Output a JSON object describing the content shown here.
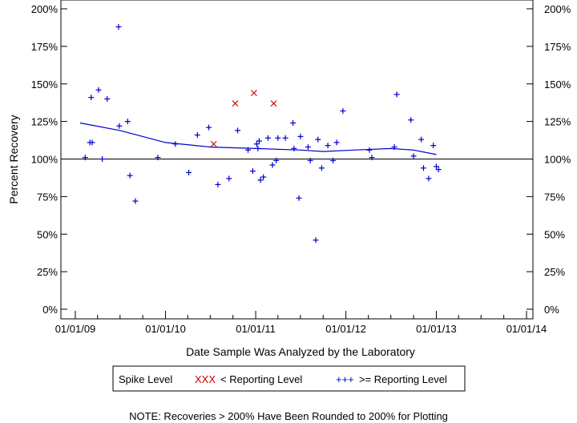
{
  "chart_data": {
    "type": "scatter",
    "title": "",
    "xlabel": "Date Sample Was Analyzed by the Laboratory",
    "ylabel": "Percent Recovery",
    "x_ticks": [
      "01/01/09",
      "01/01/10",
      "01/01/11",
      "01/01/12",
      "01/01/13",
      "01/01/14"
    ],
    "x_range": [
      "2009-01-01",
      "2014-01-01"
    ],
    "y_ticks": [
      "0%",
      "25%",
      "50%",
      "75%",
      "100%",
      "125%",
      "150%",
      "175%",
      "200%"
    ],
    "ylim": [
      0,
      200
    ],
    "reference_line": 100,
    "grid": false,
    "legend_placement": "bottom",
    "note": "NOTE: Recoveries > 200% Have Been Rounded to 200% for Plotting",
    "series": [
      {
        "name": ">= Reporting Level",
        "marker": "+++",
        "color": "#0000cc",
        "points": [
          [
            "2009-02-10",
            101
          ],
          [
            "2009-03-01",
            111
          ],
          [
            "2009-03-06",
            141
          ],
          [
            "2009-03-10",
            111
          ],
          [
            "2009-04-05",
            146
          ],
          [
            "2009-04-20",
            100
          ],
          [
            "2009-05-10",
            140
          ],
          [
            "2009-06-25",
            188
          ],
          [
            "2009-06-28",
            122
          ],
          [
            "2009-08-01",
            125
          ],
          [
            "2009-08-10",
            89
          ],
          [
            "2009-09-01",
            72
          ],
          [
            "2009-12-01",
            101
          ],
          [
            "2010-02-10",
            110
          ],
          [
            "2010-04-05",
            91
          ],
          [
            "2010-05-10",
            116
          ],
          [
            "2010-06-25",
            121
          ],
          [
            "2010-08-01",
            83
          ],
          [
            "2010-09-15",
            87
          ],
          [
            "2010-10-20",
            119
          ],
          [
            "2010-12-01",
            106
          ],
          [
            "2010-12-20",
            92
          ],
          [
            "2011-01-05",
            110
          ],
          [
            "2011-01-10",
            107
          ],
          [
            "2011-01-15",
            112
          ],
          [
            "2011-01-20",
            86
          ],
          [
            "2011-02-01",
            88
          ],
          [
            "2011-02-20",
            114
          ],
          [
            "2011-03-10",
            96
          ],
          [
            "2011-03-25",
            99
          ],
          [
            "2011-04-01",
            114
          ],
          [
            "2011-05-01",
            114
          ],
          [
            "2011-06-01",
            124
          ],
          [
            "2011-06-05",
            107
          ],
          [
            "2011-06-25",
            74
          ],
          [
            "2011-07-01",
            115
          ],
          [
            "2011-08-01",
            108
          ],
          [
            "2011-08-10",
            99
          ],
          [
            "2011-09-01",
            46
          ],
          [
            "2011-09-10",
            113
          ],
          [
            "2011-09-25",
            94
          ],
          [
            "2011-10-20",
            109
          ],
          [
            "2011-11-10",
            99
          ],
          [
            "2011-11-25",
            111
          ],
          [
            "2011-12-20",
            132
          ],
          [
            "2012-04-05",
            106
          ],
          [
            "2012-04-15",
            101
          ],
          [
            "2012-07-15",
            108
          ],
          [
            "2012-07-25",
            143
          ],
          [
            "2012-09-20",
            126
          ],
          [
            "2012-10-01",
            102
          ],
          [
            "2012-11-01",
            113
          ],
          [
            "2012-11-10",
            94
          ],
          [
            "2012-12-01",
            87
          ],
          [
            "2012-12-20",
            109
          ],
          [
            "2013-01-01",
            95
          ],
          [
            "2013-01-10",
            93
          ]
        ]
      },
      {
        "name": "< Reporting Level",
        "marker": "XXX",
        "color": "#cc0000",
        "points": [
          [
            "2010-07-15",
            110
          ],
          [
            "2010-10-10",
            137
          ],
          [
            "2010-12-25",
            144
          ],
          [
            "2011-03-15",
            137
          ]
        ]
      },
      {
        "name": "Spike Level",
        "marker": "",
        "color": "#000000",
        "points": []
      }
    ],
    "trend": {
      "color": "#0000cc",
      "points": [
        [
          "2009-01-20",
          124
        ],
        [
          "2009-07-01",
          119
        ],
        [
          "2010-01-01",
          111
        ],
        [
          "2010-07-01",
          108
        ],
        [
          "2011-01-01",
          107
        ],
        [
          "2011-07-01",
          106
        ],
        [
          "2011-10-01",
          105
        ],
        [
          "2012-02-01",
          106
        ],
        [
          "2012-07-01",
          107
        ],
        [
          "2012-10-01",
          106
        ],
        [
          "2013-01-01",
          103
        ]
      ]
    }
  }
}
